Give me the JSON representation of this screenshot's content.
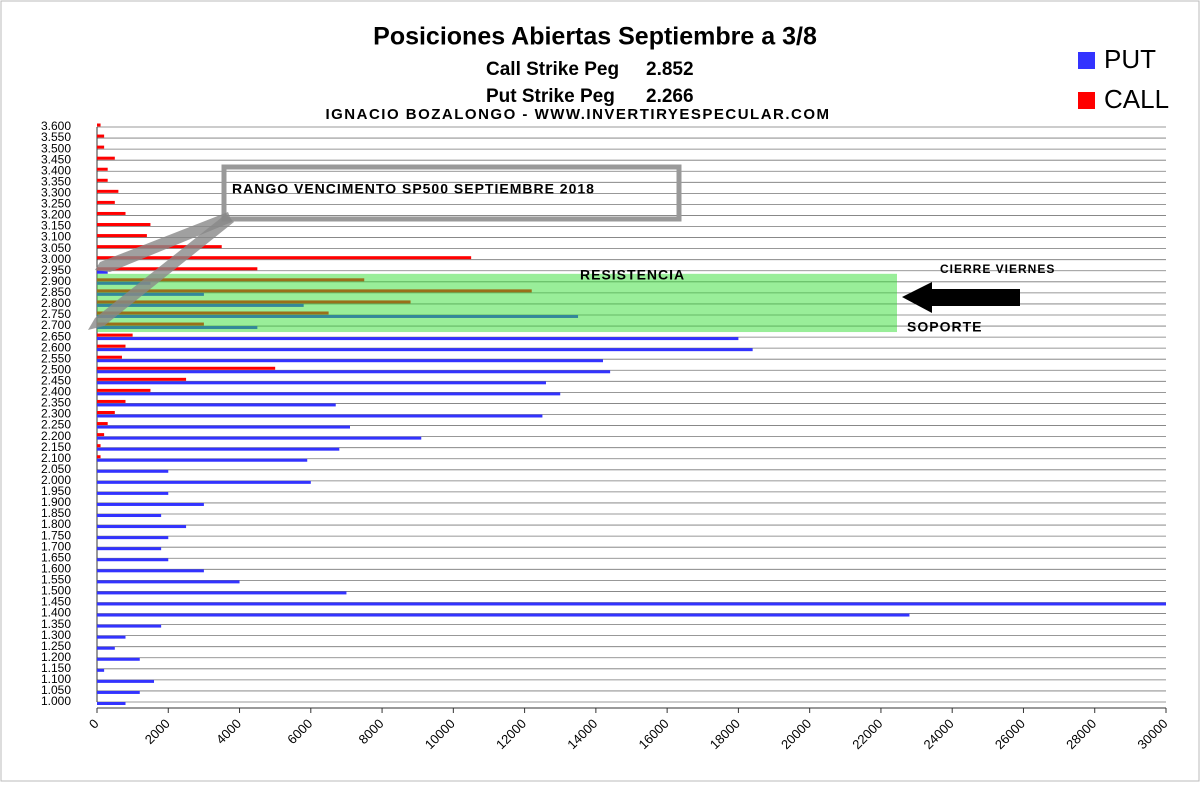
{
  "chart_data": {
    "type": "hbar",
    "title": "Posiciones Abiertas Septiembre a 3/8",
    "call_peg": {
      "label": "Call Strike Peg",
      "value": 2.852
    },
    "put_peg": {
      "label": "Put Strike Peg",
      "value": 2.266
    },
    "author": "IGNACIO BOZALONGO - WWW.INVERTIRYESPECULAR.COM",
    "annotations": {
      "range": "RANGO VENCIMENTO SP500 SEPTIEMBRE 2018",
      "resistance": "RESISTENCIA",
      "support": "SOPORTE",
      "close": "CIERRE VIERNES"
    },
    "categories": [
      "3.600",
      "3.550",
      "3.500",
      "3.450",
      "3.400",
      "3.350",
      "3.300",
      "3.250",
      "3.200",
      "3.150",
      "3.100",
      "3.050",
      "3.000",
      "2.950",
      "2.900",
      "2.850",
      "2.800",
      "2.750",
      "2.700",
      "2.650",
      "2.600",
      "2.550",
      "2.500",
      "2.450",
      "2.400",
      "2.350",
      "2.300",
      "2.250",
      "2.200",
      "2.150",
      "2.100",
      "2.050",
      "2.000",
      "1.950",
      "1.900",
      "1.850",
      "1.800",
      "1.750",
      "1.700",
      "1.650",
      "1.600",
      "1.550",
      "1.500",
      "1.450",
      "1.400",
      "1.350",
      "1.300",
      "1.250",
      "1.200",
      "1.150",
      "1.100",
      "1.050",
      "1.000"
    ],
    "series": [
      {
        "name": "PUT",
        "color": "#3333ff",
        "values": [
          0,
          0,
          0,
          0,
          0,
          0,
          0,
          0,
          0,
          0,
          0,
          0,
          0,
          300,
          1500,
          3000,
          5800,
          13500,
          4500,
          18000,
          18400,
          14200,
          14400,
          12600,
          13000,
          6700,
          12500,
          7100,
          9100,
          6800,
          5900,
          2000,
          6000,
          2000,
          3000,
          1800,
          2500,
          2000,
          1800,
          2000,
          3000,
          4000,
          7000,
          30000,
          22800,
          1800,
          800,
          500,
          1200,
          200,
          1600,
          1200,
          800
        ]
      },
      {
        "name": "CALL",
        "color": "#ff0000",
        "values": [
          100,
          200,
          200,
          500,
          300,
          300,
          600,
          500,
          800,
          1500,
          1400,
          3500,
          10500,
          4500,
          7500,
          12200,
          8800,
          6500,
          3000,
          1000,
          800,
          700,
          5000,
          2500,
          1500,
          800,
          500,
          300,
          200,
          100,
          100,
          0,
          0,
          0,
          0,
          0,
          0,
          0,
          0,
          0,
          0,
          0,
          0,
          0,
          0,
          0,
          0,
          0,
          0,
          0,
          0,
          0,
          0
        ]
      }
    ],
    "xlim": [
      0,
      30000
    ],
    "xticks": [
      0,
      2000,
      4000,
      6000,
      8000,
      10000,
      12000,
      14000,
      16000,
      18000,
      20000,
      22000,
      24000,
      26000,
      28000,
      30000
    ],
    "grid": true,
    "legend": "top-right"
  }
}
